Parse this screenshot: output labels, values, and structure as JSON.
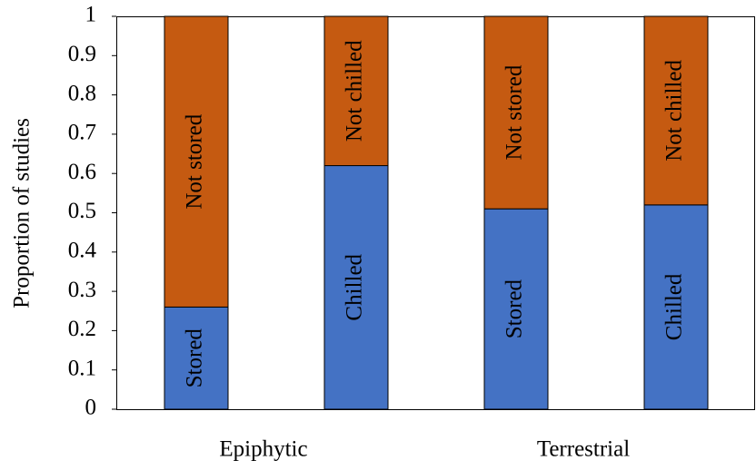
{
  "chart_data": {
    "type": "stacked_bar",
    "ylabel": "Proportion of studies",
    "ylim": [
      0,
      1
    ],
    "yticks": [
      0,
      0.1,
      0.2,
      0.3,
      0.4,
      0.5,
      0.6,
      0.7,
      0.8,
      0.9,
      1
    ],
    "groups": [
      {
        "name": "Epiphytic",
        "bars": [
          {
            "segments": [
              {
                "label": "Stored",
                "value": 0.26,
                "color": "#4472c4"
              },
              {
                "label": "Not stored",
                "value": 0.74,
                "color": "#c55a11"
              }
            ]
          },
          {
            "segments": [
              {
                "label": "Chilled",
                "value": 0.62,
                "color": "#4472c4"
              },
              {
                "label": "Not chilled",
                "value": 0.38,
                "color": "#c55a11"
              }
            ]
          }
        ]
      },
      {
        "name": "Terrestrial",
        "bars": [
          {
            "segments": [
              {
                "label": "Stored",
                "value": 0.51,
                "color": "#4472c4"
              },
              {
                "label": "Not stored",
                "value": 0.49,
                "color": "#c55a11"
              }
            ]
          },
          {
            "segments": [
              {
                "label": "Chilled",
                "value": 0.52,
                "color": "#4472c4"
              },
              {
                "label": "Not chilled",
                "value": 0.48,
                "color": "#c55a11"
              }
            ]
          }
        ]
      }
    ]
  }
}
